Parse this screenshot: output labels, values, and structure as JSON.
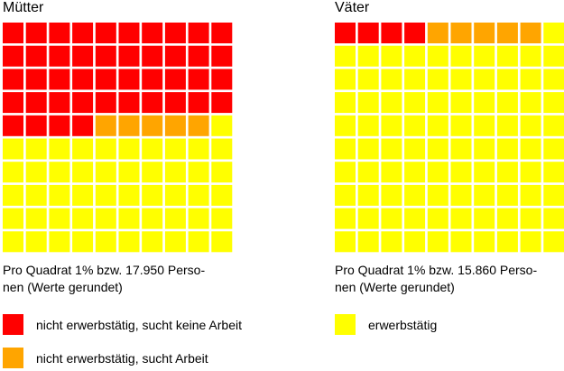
{
  "colors": {
    "not_working_not_seeking": "#FF0000",
    "not_working_seeking": "#FFA500",
    "working": "#FFFF00"
  },
  "legend": {
    "not_working_not_seeking": "nicht erwerbstätig, sucht keine Arbeit",
    "not_working_seeking": "nicht erwerbstätig, sucht Arbeit",
    "working": "erwerbstätig"
  },
  "panels": {
    "mothers": {
      "title": "Mütter",
      "caption_line1": "Pro Quadrat 1% bzw. 17.950 Perso-",
      "caption_line2": "nen (Werte gerundet)"
    },
    "fathers": {
      "title": "Väter",
      "caption_line1": "Pro Quadrat 1% bzw. 15.860 Perso-",
      "caption_line2": "nen (Werte gerundet)"
    }
  },
  "chart_data": [
    {
      "type": "waffle",
      "title": "Mütter",
      "unit": "Prozent (1 Quadrat = 1%)",
      "grid": [
        10,
        10
      ],
      "categories": [
        "nicht erwerbstätig, sucht keine Arbeit",
        "nicht erwerbstätig, sucht Arbeit",
        "erwerbstätig"
      ],
      "values": [
        44,
        5,
        51
      ],
      "colors": [
        "#FF0000",
        "#FFA500",
        "#FFFF00"
      ]
    },
    {
      "type": "waffle",
      "title": "Väter",
      "unit": "Prozent (1 Quadrat = 1%)",
      "grid": [
        10,
        10
      ],
      "categories": [
        "nicht erwerbstätig, sucht keine Arbeit",
        "nicht erwerbstätig, sucht Arbeit",
        "erwerbstätig"
      ],
      "values": [
        4,
        5,
        91
      ],
      "colors": [
        "#FF0000",
        "#FFA500",
        "#FFFF00"
      ]
    }
  ]
}
